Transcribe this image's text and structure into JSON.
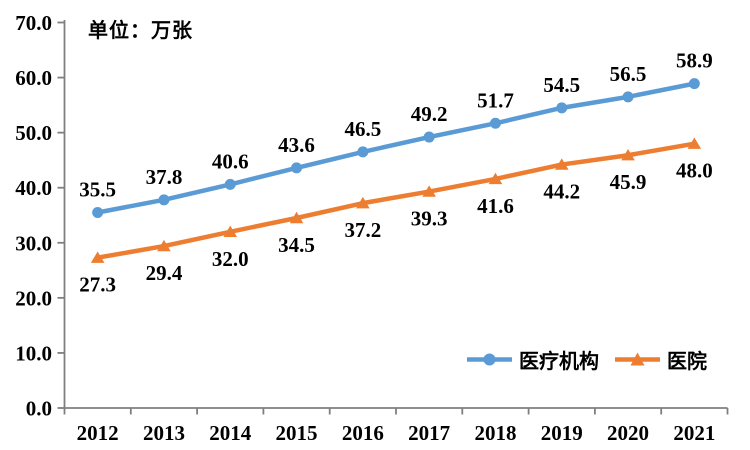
{
  "chart_data": {
    "type": "line",
    "unit_label": "单位：万张",
    "categories": [
      "2012",
      "2013",
      "2014",
      "2015",
      "2016",
      "2017",
      "2018",
      "2019",
      "2020",
      "2021"
    ],
    "series": [
      {
        "name": "医疗机构",
        "color": "#5B9BD5",
        "marker": "circle",
        "label_position": "above",
        "values": [
          35.5,
          37.8,
          40.6,
          43.6,
          46.5,
          49.2,
          51.7,
          54.5,
          56.5,
          58.9
        ]
      },
      {
        "name": "医院",
        "color": "#ED7D31",
        "marker": "triangle",
        "label_position": "below",
        "values": [
          27.3,
          29.4,
          32.0,
          34.5,
          37.2,
          39.3,
          41.6,
          44.2,
          45.9,
          48.0
        ]
      }
    ],
    "ylim": [
      0,
      70
    ],
    "ytick_step": 10,
    "ytick_decimals": 1,
    "grid": false,
    "legend_position": "inside-bottom-right",
    "axis_color": "#7F7F7F",
    "text_color": "#000000",
    "value_label_decimals": 1
  }
}
